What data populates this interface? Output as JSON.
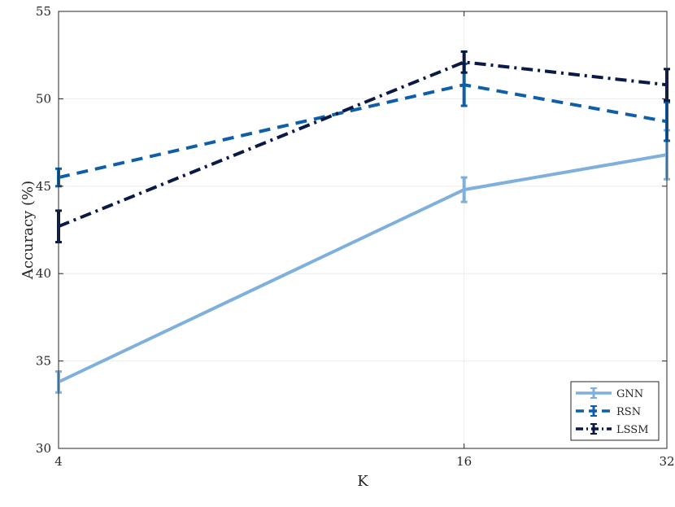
{
  "chart_data": {
    "type": "line",
    "xlabel": "K",
    "ylabel": "Accuracy (%)",
    "x": [
      4,
      16,
      32
    ],
    "x_tick_labels": [
      "4",
      "16",
      "32"
    ],
    "x_scale": "log2",
    "xlim": [
      4,
      32
    ],
    "ylim": [
      30,
      55
    ],
    "y_ticks": [
      30,
      35,
      40,
      45,
      50,
      55
    ],
    "y_tick_labels": [
      "30",
      "35",
      "40",
      "45",
      "50",
      "55"
    ],
    "grid": true,
    "legend_position": "bottom-right",
    "series": [
      {
        "name": "GNN",
        "values": [
          33.8,
          44.8,
          46.8
        ],
        "errors": [
          0.6,
          0.7,
          1.4
        ],
        "color": "#7fb0db",
        "style": "solid"
      },
      {
        "name": "RSN",
        "values": [
          45.5,
          50.8,
          48.7
        ],
        "errors": [
          0.5,
          1.2,
          1.1
        ],
        "color": "#0f5ea8",
        "style": "dashed"
      },
      {
        "name": "LSSM",
        "values": [
          42.7,
          52.1,
          50.8
        ],
        "errors": [
          0.9,
          0.6,
          0.9
        ],
        "color": "#0b1a45",
        "style": "dashdot"
      }
    ]
  }
}
